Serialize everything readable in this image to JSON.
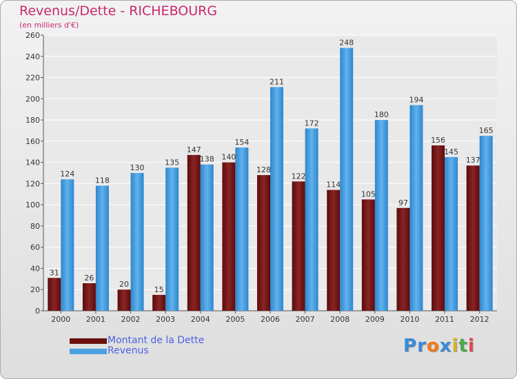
{
  "header": {
    "title": "Revenus/Dette - RICHEBOURG",
    "subtitle": "(en milliers d'€)"
  },
  "colors": {
    "title": "#c8286e",
    "dette": "#7a1717",
    "revenus": "#4aa0e0",
    "legend_text": "#4d5fe0"
  },
  "chart_data": {
    "type": "bar",
    "title": "Revenus/Dette - RICHEBOURG",
    "ylabel": "(en milliers d'€)",
    "xlabel": "",
    "ylim": [
      0,
      260
    ],
    "yticks": [
      0,
      20,
      40,
      60,
      80,
      100,
      120,
      140,
      160,
      180,
      200,
      220,
      240,
      260
    ],
    "grid": true,
    "legend_position": "bottom-left",
    "categories": [
      "2000",
      "2001",
      "2002",
      "2003",
      "2004",
      "2005",
      "2006",
      "2007",
      "2008",
      "2009",
      "2010",
      "2011",
      "2012"
    ],
    "series": [
      {
        "name": "Montant de la Dette",
        "values": [
          31,
          26,
          20,
          15,
          147,
          140,
          128,
          122,
          114,
          105,
          97,
          156,
          137
        ]
      },
      {
        "name": "Revenus",
        "values": [
          124,
          118,
          130,
          135,
          138,
          154,
          211,
          172,
          248,
          180,
          194,
          145,
          165
        ]
      }
    ]
  },
  "legend": {
    "items": [
      {
        "label": "Montant de la Dette"
      },
      {
        "label": "Revenus"
      }
    ]
  },
  "logo": {
    "letters": [
      {
        "ch": "P",
        "color": "#3a8ad8"
      },
      {
        "ch": "r",
        "color": "#3a8ad8"
      },
      {
        "ch": "o",
        "color": "#f07a1a"
      },
      {
        "ch": "x",
        "color": "#3a8ad8"
      },
      {
        "ch": "i",
        "color": "#d9b020"
      },
      {
        "ch": "t",
        "color": "#4aa84a"
      },
      {
        "ch": "i",
        "color": "#e04a4a"
      }
    ]
  }
}
